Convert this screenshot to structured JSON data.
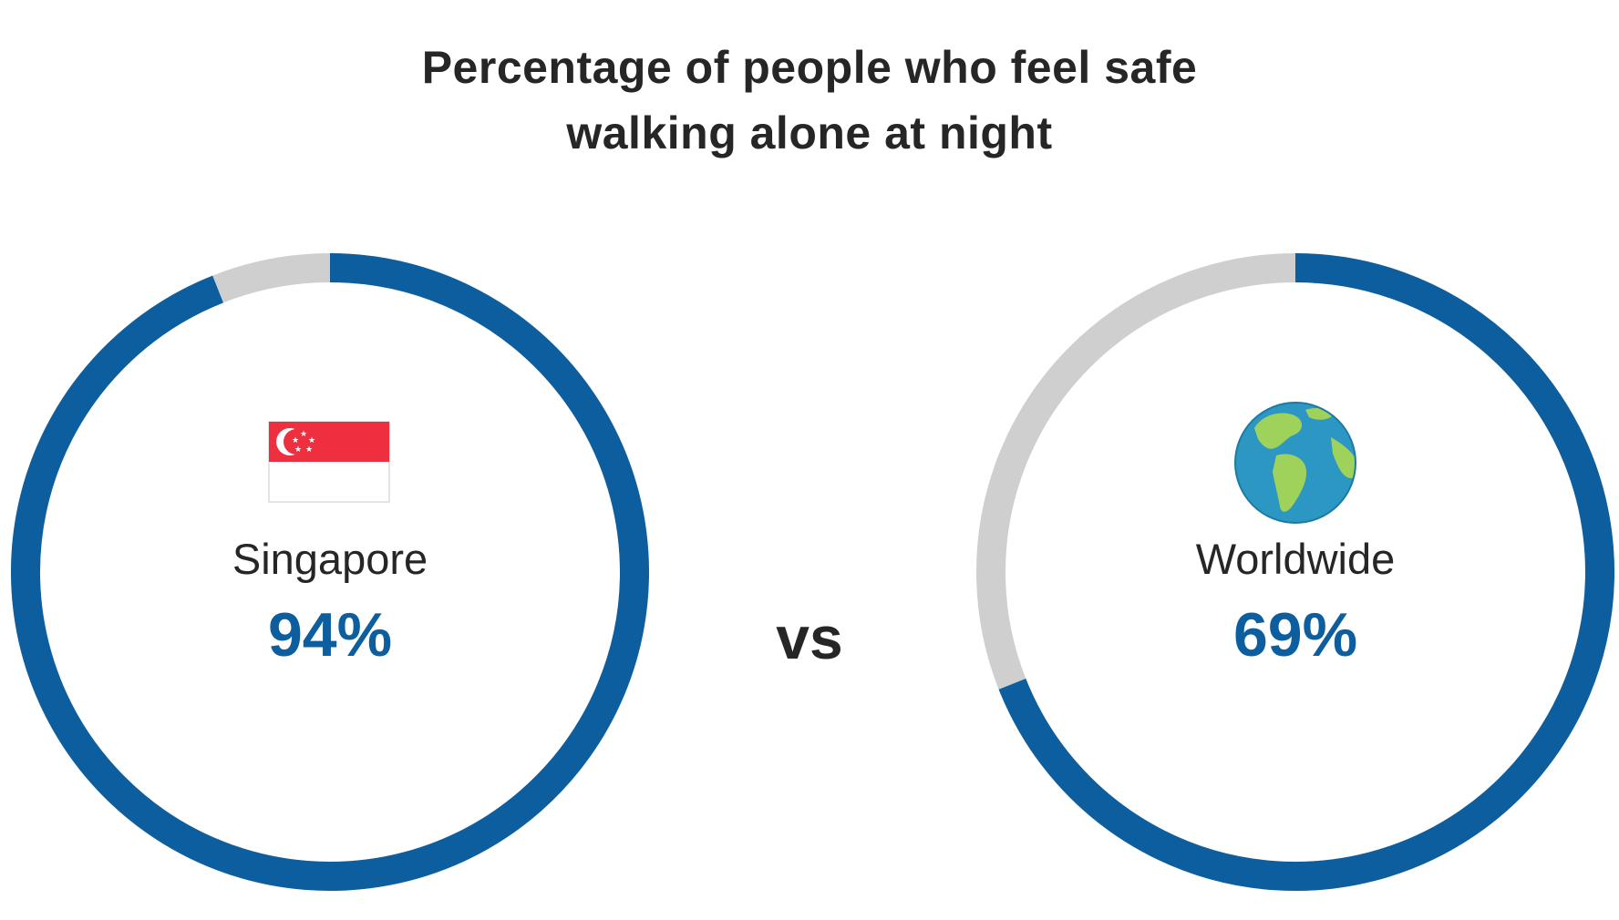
{
  "chart_data": {
    "type": "pie",
    "title": "Percentage of people who feel safe walking alone at night",
    "title_lines": [
      "Percentage of people who feel safe",
      "walking alone at night"
    ],
    "comparison_label": "vs",
    "colors": {
      "filled": "#0d5e9e",
      "remainder": "#cfcfcf",
      "value_text": "#0d5e9e",
      "label_text": "#262626"
    },
    "series": [
      {
        "name": "Singapore",
        "value": 94,
        "value_label": "94%",
        "icon": "singapore-flag-icon"
      },
      {
        "name": "Worldwide",
        "value": 69,
        "value_label": "69%",
        "icon": "globe-icon"
      }
    ]
  }
}
